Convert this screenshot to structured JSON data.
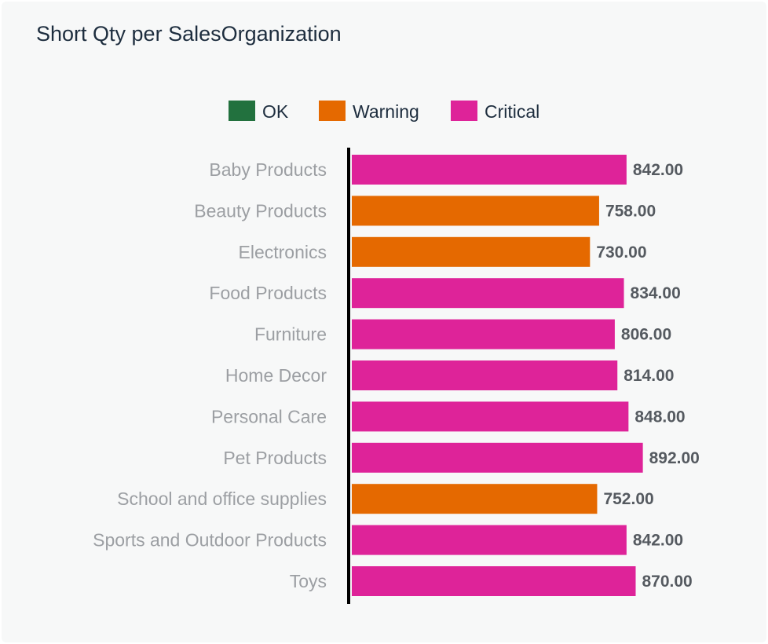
{
  "card": {
    "title": "Short Qty per SalesOrganization"
  },
  "chart_data": {
    "type": "bar",
    "orientation": "horizontal",
    "title": "Short Qty per SalesOrganization",
    "xlabel": "",
    "ylabel": "",
    "categories": [
      "Baby Products",
      "Beauty Products",
      "Electronics",
      "Food Products",
      "Furniture",
      "Home Decor",
      "Personal Care",
      "Pet Products",
      "School and office supplies",
      "Sports and Outdoor Products",
      "Toys"
    ],
    "values": [
      842,
      758,
      730,
      834,
      806,
      814,
      848,
      892,
      752,
      842,
      870
    ],
    "value_labels": [
      "842.00",
      "758.00",
      "730.00",
      "834.00",
      "806.00",
      "814.00",
      "848.00",
      "892.00",
      "752.00",
      "842.00",
      "870.00"
    ],
    "status": [
      "Critical",
      "Warning",
      "Warning",
      "Critical",
      "Critical",
      "Critical",
      "Critical",
      "Critical",
      "Warning",
      "Critical",
      "Critical"
    ],
    "legend": {
      "position": "top",
      "items": [
        {
          "name": "OK",
          "color": "#22713e"
        },
        {
          "name": "Warning",
          "color": "#e56900"
        },
        {
          "name": "Critical",
          "color": "#de2399"
        }
      ]
    },
    "xlim": [
      0,
      1000
    ],
    "grid": false,
    "axis_ticks_visible": false
  }
}
